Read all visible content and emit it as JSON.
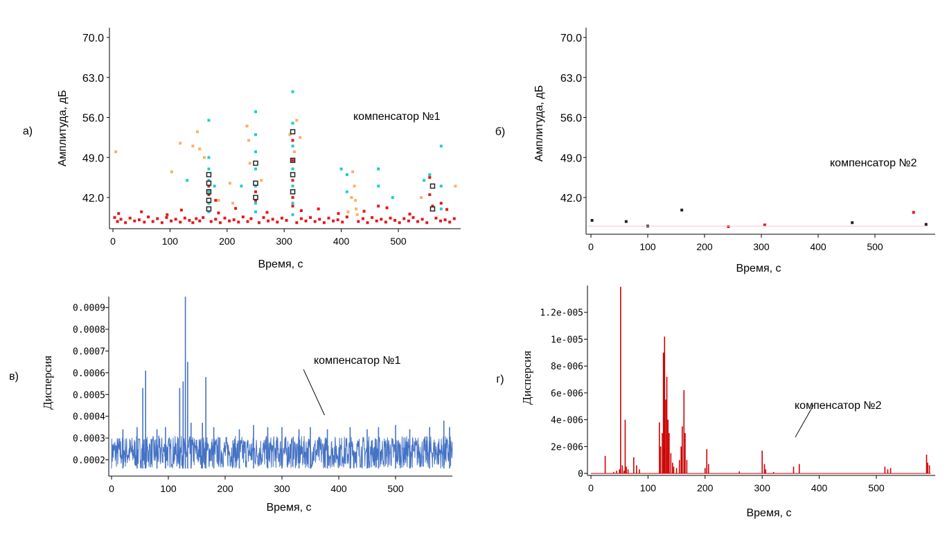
{
  "chart_data": [
    {
      "id": "a",
      "type": "scatter",
      "panel_label": "а)",
      "annotation": "компенсатор №1",
      "xlabel": "Время, с",
      "ylabel": "Амплитуда, дБ",
      "xlim": [
        0,
        610
      ],
      "ylim": [
        37,
        71
      ],
      "xticks": [
        0,
        100,
        200,
        300,
        400,
        500
      ],
      "yticks": [
        "42.0",
        "49.0",
        "56.0",
        "63.0",
        "70.0"
      ],
      "colors": {
        "red": "#e8151b",
        "orange": "#f8b06a",
        "cyan": "#1ccfc9",
        "dark": "#222222"
      },
      "series": [
        {
          "color": "red",
          "points": [
            [
              3,
              38.5
            ],
            [
              8,
              37.8
            ],
            [
              14,
              38.2
            ],
            [
              22,
              37.6
            ],
            [
              30,
              38.4
            ],
            [
              38,
              37.9
            ],
            [
              46,
              38.1
            ],
            [
              55,
              37.7
            ],
            [
              62,
              38.6
            ],
            [
              70,
              37.8
            ],
            [
              78,
              38.3
            ],
            [
              86,
              37.6
            ],
            [
              94,
              38.5
            ],
            [
              102,
              37.9
            ],
            [
              110,
              38.2
            ],
            [
              118,
              37.7
            ],
            [
              126,
              38.4
            ],
            [
              134,
              38.0
            ],
            [
              140,
              37.6
            ],
            [
              146,
              38.3
            ],
            [
              152,
              37.9
            ],
            [
              158,
              38.5
            ],
            [
              172,
              37.8
            ],
            [
              180,
              38.2
            ],
            [
              188,
              37.6
            ],
            [
              196,
              38.4
            ],
            [
              204,
              37.9
            ],
            [
              212,
              38.1
            ],
            [
              220,
              37.7
            ],
            [
              228,
              38.6
            ],
            [
              236,
              37.8
            ],
            [
              242,
              38.3
            ],
            [
              256,
              37.6
            ],
            [
              264,
              38.5
            ],
            [
              272,
              37.9
            ],
            [
              280,
              38.2
            ],
            [
              288,
              37.7
            ],
            [
              296,
              38.4
            ],
            [
              304,
              38.0
            ],
            [
              322,
              37.6
            ],
            [
              330,
              38.3
            ],
            [
              338,
              37.9
            ],
            [
              346,
              38.5
            ],
            [
              354,
              37.8
            ],
            [
              362,
              38.2
            ],
            [
              370,
              37.6
            ],
            [
              378,
              38.4
            ],
            [
              386,
              37.9
            ],
            [
              394,
              38.1
            ],
            [
              402,
              37.7
            ],
            [
              410,
              38.6
            ],
            [
              430,
              37.8
            ],
            [
              438,
              38.3
            ],
            [
              446,
              37.6
            ],
            [
              454,
              38.5
            ],
            [
              462,
              37.9
            ],
            [
              470,
              38.2
            ],
            [
              478,
              37.7
            ],
            [
              486,
              38.4
            ],
            [
              494,
              38.0
            ],
            [
              502,
              37.6
            ],
            [
              510,
              38.3
            ],
            [
              518,
              37.9
            ],
            [
              526,
              38.5
            ],
            [
              534,
              37.8
            ],
            [
              542,
              38.2
            ],
            [
              550,
              37.6
            ],
            [
              566,
              38.4
            ],
            [
              574,
              37.9
            ],
            [
              582,
              38.1
            ],
            [
              590,
              37.7
            ],
            [
              598,
              38.3
            ],
            [
              10,
              39.2
            ],
            [
              50,
              39.5
            ],
            [
              95,
              39.0
            ],
            [
              120,
              39.8
            ],
            [
              185,
              39.3
            ],
            [
              215,
              40.1
            ],
            [
              270,
              39.4
            ],
            [
              330,
              39.7
            ],
            [
              360,
              40.0
            ],
            [
              395,
              39.2
            ],
            [
              440,
              39.6
            ],
            [
              480,
              40.2
            ],
            [
              520,
              39.1
            ],
            [
              585,
              39.9
            ],
            [
              168,
              44.0
            ],
            [
              168,
              42.5
            ],
            [
              168,
              41.0
            ],
            [
              250,
              43.0
            ],
            [
              250,
              41.5
            ],
            [
              315,
              52.0
            ],
            [
              315,
              48.5
            ],
            [
              315,
              45.0
            ],
            [
              315,
              42.0
            ],
            [
              315,
              40.5
            ],
            [
              555,
              45.5
            ],
            [
              555,
              42.5
            ],
            [
              560,
              40.5
            ],
            [
              575,
              41.0
            ],
            [
              465,
              40.5
            ],
            [
              180,
              41.5
            ]
          ]
        },
        {
          "color": "orange",
          "points": [
            [
              5,
              50.0
            ],
            [
              103,
              46.5
            ],
            [
              118,
              51.5
            ],
            [
              140,
              51.0
            ],
            [
              148,
              53.5
            ],
            [
              152,
              50.5
            ],
            [
              160,
              49.0
            ],
            [
              185,
              41.5
            ],
            [
              205,
              44.5
            ],
            [
              210,
              41.0
            ],
            [
              235,
              54.5
            ],
            [
              238,
              52.0
            ],
            [
              240,
              48.0
            ],
            [
              310,
              53.0
            ],
            [
              318,
              50.0
            ],
            [
              322,
              55.5
            ],
            [
              328,
              52.5
            ],
            [
              260,
              45.0
            ],
            [
              420,
              46.5
            ],
            [
              423,
              44.0
            ],
            [
              425,
              41.5
            ],
            [
              426,
              40.0
            ],
            [
              428,
              39.0
            ],
            [
              418,
              42.0
            ],
            [
              412,
              39.5
            ],
            [
              600,
              44.0
            ],
            [
              540,
              42.0
            ],
            [
              465,
              47.0
            ]
          ]
        },
        {
          "color": "cyan",
          "points": [
            [
              168,
              55.5
            ],
            [
              168,
              49.0
            ],
            [
              168,
              47.0
            ],
            [
              168,
              45.0
            ],
            [
              168,
              43.0
            ],
            [
              168,
              41.0
            ],
            [
              168,
              39.5
            ],
            [
              178,
              44.0
            ],
            [
              250,
              57.0
            ],
            [
              250,
              53.0
            ],
            [
              250,
              50.0
            ],
            [
              250,
              47.0
            ],
            [
              250,
              44.0
            ],
            [
              250,
              41.0
            ],
            [
              250,
              39.5
            ],
            [
              315,
              60.5
            ],
            [
              315,
              55.0
            ],
            [
              315,
              51.0
            ],
            [
              315,
              47.0
            ],
            [
              315,
              44.0
            ],
            [
              315,
              41.0
            ],
            [
              315,
              39.0
            ],
            [
              400,
              47.0
            ],
            [
              410,
              46.0
            ],
            [
              410,
              43.0
            ],
            [
              465,
              47.0
            ],
            [
              465,
              44.0
            ],
            [
              490,
              42.0
            ],
            [
              545,
              45.0
            ],
            [
              555,
              46.0
            ],
            [
              575,
              51.0
            ],
            [
              575,
              44.0
            ],
            [
              575,
              40.0
            ],
            [
              130,
              45.0
            ],
            [
              225,
              44.0
            ]
          ]
        },
        {
          "color": "dark",
          "points": [
            [
              168,
              46.0
            ],
            [
              168,
              44.5
            ],
            [
              168,
              43.0
            ],
            [
              168,
              41.5
            ],
            [
              168,
              40.0
            ],
            [
              250,
              48.0
            ],
            [
              250,
              44.5
            ],
            [
              250,
              42.0
            ],
            [
              315,
              53.5
            ],
            [
              315,
              48.5
            ],
            [
              315,
              46.0
            ],
            [
              315,
              43.0
            ],
            [
              560,
              44.0
            ],
            [
              560,
              40.0
            ]
          ]
        }
      ]
    },
    {
      "id": "b",
      "type": "scatter",
      "panel_label": "б)",
      "annotation": "компенсатор №2",
      "xlabel": "Время, с",
      "ylabel": "Амплитуда, дБ",
      "xlim": [
        0,
        610
      ],
      "ylim": [
        36,
        71
      ],
      "xticks": [
        0,
        100,
        200,
        300,
        400,
        500
      ],
      "yticks": [
        "42.0",
        "49.0",
        "56.0",
        "63.0",
        "70.0"
      ],
      "colors": {
        "red": "#e8151b",
        "dark": "#222222"
      },
      "series": [
        {
          "color": "dark",
          "points": [
            [
              2,
              38.0
            ],
            [
              62,
              37.8
            ],
            [
              100,
              37.0
            ],
            [
              160,
              39.8
            ],
            [
              460,
              37.6
            ],
            [
              590,
              37.3
            ]
          ]
        },
        {
          "color": "red",
          "points": [
            [
              242,
              36.9
            ],
            [
              306,
              37.2
            ],
            [
              568,
              39.4
            ]
          ]
        }
      ]
    },
    {
      "id": "v",
      "type": "line",
      "panel_label": "в)",
      "annotation": "компенсатор №1",
      "xlabel": "Время, с",
      "ylabel": "Дисперсия",
      "xlim": [
        0,
        600
      ],
      "ylim": [
        0.000125,
        0.00095
      ],
      "xticks": [
        0,
        100,
        200,
        300,
        400,
        500
      ],
      "yticks": [
        "0.0002",
        "0.0003",
        "0.0004",
        "0.0005",
        "0.0006",
        "0.0007",
        "0.0008",
        "0.0009"
      ],
      "colors": {
        "line": "#4472c4"
      },
      "noise": {
        "low": 0.00016,
        "high": 0.00031
      },
      "peaks": [
        [
          20,
          0.00034
        ],
        [
          45,
          0.00035
        ],
        [
          55,
          0.00053
        ],
        [
          60,
          0.00061
        ],
        [
          80,
          0.00034
        ],
        [
          95,
          0.00035
        ],
        [
          120,
          0.00053
        ],
        [
          126,
          0.00056
        ],
        [
          130,
          0.00095
        ],
        [
          134,
          0.00065
        ],
        [
          140,
          0.00037
        ],
        [
          160,
          0.00037
        ],
        [
          166,
          0.00058
        ],
        [
          180,
          0.00035
        ],
        [
          225,
          0.00034
        ],
        [
          250,
          0.00036
        ],
        [
          275,
          0.00035
        ],
        [
          300,
          0.00035
        ],
        [
          330,
          0.00034
        ],
        [
          350,
          0.00035
        ],
        [
          380,
          0.00034
        ],
        [
          420,
          0.00035
        ],
        [
          450,
          0.00034
        ],
        [
          470,
          0.00035
        ],
        [
          500,
          0.00036
        ],
        [
          525,
          0.00034
        ],
        [
          560,
          0.00035
        ],
        [
          585,
          0.00038
        ],
        [
          595,
          0.00035
        ]
      ],
      "arrow": {
        "from": [
          375,
          0.000405
        ],
        "to": [
          338,
          0.000615
        ]
      }
    },
    {
      "id": "g",
      "type": "line",
      "panel_label": "г)",
      "annotation": "компенсатор №2",
      "xlabel": "Время, с",
      "ylabel": "Дисперсия",
      "xlim": [
        0,
        595
      ],
      "ylim": [
        -1.5e-07,
        1.4e-05
      ],
      "xticks": [
        0,
        100,
        200,
        300,
        400,
        500
      ],
      "yticks": [
        "0",
        "2e-006",
        "4e-006",
        "6e-006",
        "8e-006",
        "1e-005",
        "1.2e-005"
      ],
      "colors": {
        "line": "#cc0000"
      },
      "peaks": [
        [
          25,
          1.3e-06
        ],
        [
          40,
          1e-07
        ],
        [
          45,
          2e-07
        ],
        [
          50,
          3e-07
        ],
        [
          52,
          1.39e-05
        ],
        [
          55,
          6e-07
        ],
        [
          58,
          2e-07
        ],
        [
          60,
          4e-06
        ],
        [
          62,
          5e-07
        ],
        [
          65,
          3e-07
        ],
        [
          75,
          1.2e-06
        ],
        [
          80,
          6e-07
        ],
        [
          85,
          3e-07
        ],
        [
          120,
          3.8e-06
        ],
        [
          122,
          2e-06
        ],
        [
          125,
          3e-06
        ],
        [
          127,
          9e-06
        ],
        [
          129,
          1.02e-05
        ],
        [
          131,
          5.5e-06
        ],
        [
          133,
          7.2e-06
        ],
        [
          135,
          4e-06
        ],
        [
          137,
          3e-06
        ],
        [
          140,
          1.5e-06
        ],
        [
          143,
          8e-07
        ],
        [
          145,
          5e-07
        ],
        [
          150,
          4e-07
        ],
        [
          155,
          1e-06
        ],
        [
          158,
          2e-06
        ],
        [
          160,
          3.5e-06
        ],
        [
          163,
          6.2e-06
        ],
        [
          165,
          3e-06
        ],
        [
          168,
          1e-06
        ],
        [
          200,
          4e-07
        ],
        [
          203,
          1.8e-06
        ],
        [
          206,
          7e-07
        ],
        [
          260,
          1.5e-07
        ],
        [
          300,
          1.7e-06
        ],
        [
          304,
          7e-07
        ],
        [
          306,
          3e-07
        ],
        [
          320,
          1e-07
        ],
        [
          355,
          5e-07
        ],
        [
          365,
          7e-07
        ],
        [
          515,
          5e-07
        ],
        [
          520,
          3e-07
        ],
        [
          525,
          4e-07
        ],
        [
          588,
          1.4e-06
        ],
        [
          590,
          8e-07
        ],
        [
          593,
          6e-07
        ]
      ],
      "arrow": {
        "from": [
          358,
          2.7e-06
        ],
        "to": [
          390,
          5.1e-06
        ]
      }
    }
  ]
}
